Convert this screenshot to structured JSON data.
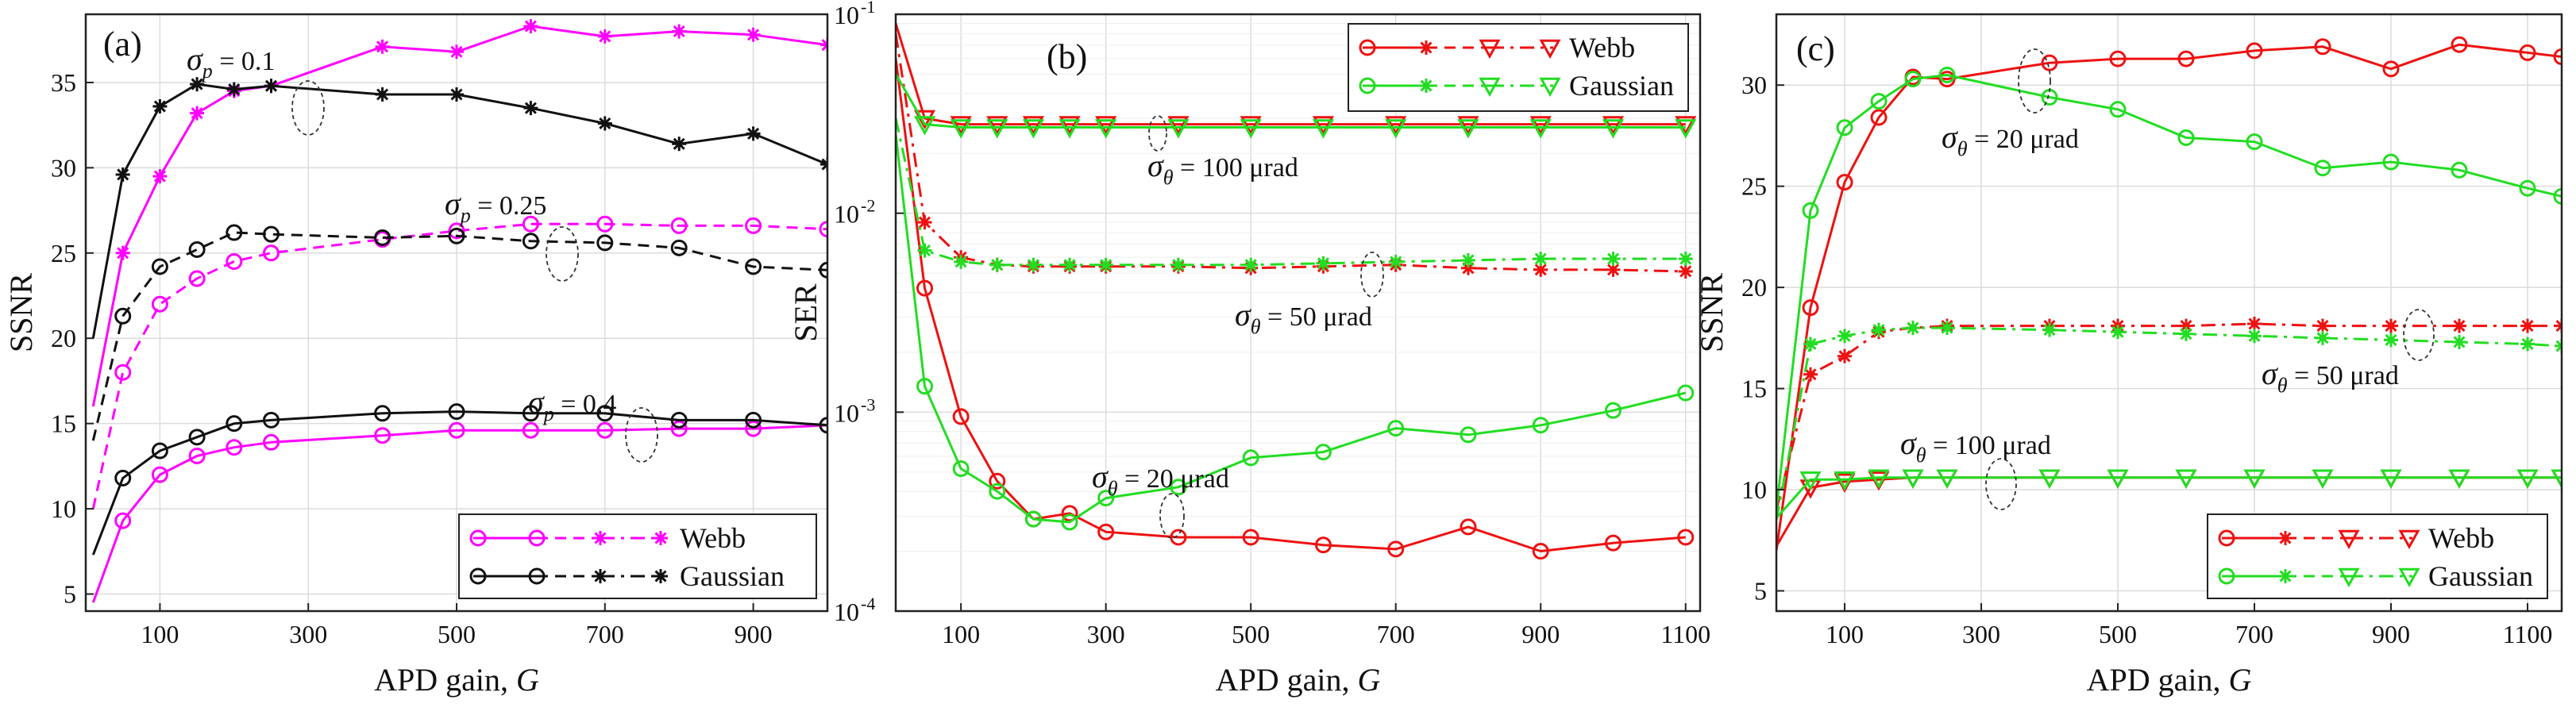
{
  "figure": {
    "caption_letters": [
      "(a)",
      "(b)",
      "(c)"
    ]
  },
  "chart_data": [
    {
      "type": "line",
      "panel": "(a)",
      "xlabel": "APD gain, ",
      "xlabel_var": "G",
      "ylabel": "SSNR",
      "xlim": [
        0,
        1000
      ],
      "ylim": [
        4,
        39
      ],
      "yscale": "linear",
      "xticks": [
        100,
        300,
        500,
        700,
        900
      ],
      "yticks": [
        5,
        10,
        15,
        20,
        25,
        30,
        35
      ],
      "ytick_labels": [
        "5",
        "10",
        "15",
        "20",
        "25",
        "30",
        "35"
      ],
      "grid": true,
      "legend": {
        "position": "bottom-right",
        "entries": [
          "Webb",
          "Gaussian"
        ]
      },
      "annotations": [
        {
          "sym": "σ",
          "sub": "p",
          "rest": " = 0.1"
        },
        {
          "sym": "σ",
          "sub": "p",
          "rest": " = 0.25"
        },
        {
          "sym": "σ",
          "sub": "p",
          "rest": " = 0.4"
        }
      ],
      "series": [
        {
          "name": "Webb σp = 0.1",
          "model": "Webb",
          "color": "#ff00ff",
          "dash": "solid",
          "marker": "star",
          "x": [
            10,
            50,
            100,
            150,
            200,
            250,
            400,
            500,
            600,
            700,
            800,
            900,
            1000
          ],
          "y": [
            16,
            25,
            29.5,
            33.2,
            34.5,
            34.8,
            37.1,
            36.8,
            38.3,
            37.7,
            38.0,
            37.8,
            37.2
          ]
        },
        {
          "name": "Webb σp = 0.25",
          "model": "Webb",
          "color": "#ff00ff",
          "dash": "dash",
          "marker": "circle",
          "x": [
            10,
            50,
            100,
            150,
            200,
            250,
            400,
            500,
            600,
            700,
            800,
            900,
            1000
          ],
          "y": [
            10,
            18,
            22,
            23.5,
            24.5,
            25,
            25.8,
            26.3,
            26.7,
            26.7,
            26.6,
            26.6,
            26.4
          ]
        },
        {
          "name": "Webb σp = 0.4",
          "model": "Webb",
          "color": "#ff00ff",
          "dash": "solid",
          "marker": "circle",
          "x": [
            10,
            50,
            100,
            150,
            200,
            250,
            400,
            500,
            600,
            700,
            800,
            900,
            1000
          ],
          "y": [
            4.5,
            9.3,
            12,
            13.1,
            13.6,
            13.9,
            14.3,
            14.6,
            14.6,
            14.6,
            14.7,
            14.7,
            14.9
          ]
        },
        {
          "name": "Gaussian σp = 0.1",
          "model": "Gaussian",
          "color": "#111111",
          "dash": "solid",
          "marker": "star",
          "x": [
            10,
            50,
            100,
            150,
            200,
            250,
            400,
            500,
            600,
            700,
            800,
            900,
            1000
          ],
          "y": [
            20,
            29.6,
            33.6,
            34.9,
            34.6,
            34.8,
            34.3,
            34.3,
            33.5,
            32.6,
            31.4,
            32.0,
            30.2
          ]
        },
        {
          "name": "Gaussian σp = 0.25",
          "model": "Gaussian",
          "color": "#111111",
          "dash": "dash",
          "marker": "circle",
          "x": [
            10,
            50,
            100,
            150,
            200,
            250,
            400,
            500,
            600,
            700,
            800,
            900,
            1000
          ],
          "y": [
            14,
            21.3,
            24.2,
            25.2,
            26.2,
            26.1,
            25.9,
            26.0,
            25.7,
            25.6,
            25.3,
            24.2,
            24.0
          ]
        },
        {
          "name": "Gaussian σp = 0.4",
          "model": "Gaussian",
          "color": "#111111",
          "dash": "solid",
          "marker": "circle",
          "x": [
            10,
            50,
            100,
            150,
            200,
            250,
            400,
            500,
            600,
            700,
            800,
            900,
            1000
          ],
          "y": [
            7.3,
            11.8,
            13.4,
            14.2,
            15.0,
            15.2,
            15.6,
            15.7,
            15.6,
            15.6,
            15.2,
            15.2,
            14.9
          ]
        }
      ]
    },
    {
      "type": "line",
      "panel": "(b)",
      "xlabel": "APD gain, ",
      "xlabel_var": "G",
      "ylabel": "SER",
      "xlim": [
        10,
        1120
      ],
      "ylim": [
        0.0001,
        0.1
      ],
      "yscale": "log",
      "xticks": [
        100,
        300,
        500,
        700,
        900,
        1100
      ],
      "yticks": [
        0.0001,
        0.001,
        0.01,
        0.1
      ],
      "ytick_labels": [
        "10",
        "10",
        "10",
        "10"
      ],
      "ytick_exps": [
        "-4",
        "-3",
        "-2",
        "-1"
      ],
      "grid": true,
      "legend": {
        "position": "top-right",
        "entries": [
          "Webb",
          "Gaussian"
        ]
      },
      "annotations": [
        {
          "sym": "σ",
          "sub": "θ",
          "rest": " = 100 μrad"
        },
        {
          "sym": "σ",
          "sub": "θ",
          "rest": " = 50 μrad"
        },
        {
          "sym": "σ",
          "sub": "θ",
          "rest": " = 20 μrad"
        }
      ],
      "series": [
        {
          "name": "Webb σθ = 100 μrad",
          "model": "Webb",
          "color": "#ee1111",
          "dash": "solid",
          "marker": "triangle",
          "x": [
            10,
            50,
            100,
            150,
            200,
            250,
            300,
            400,
            500,
            600,
            700,
            800,
            900,
            1000,
            1100
          ],
          "y": [
            0.09,
            0.03,
            0.028,
            0.028,
            0.028,
            0.028,
            0.028,
            0.028,
            0.028,
            0.028,
            0.028,
            0.028,
            0.028,
            0.028,
            0.028
          ]
        },
        {
          "name": "Webb σθ = 50 μrad",
          "model": "Webb",
          "color": "#ee1111",
          "dash": "dashdot",
          "marker": "star",
          "x": [
            10,
            50,
            100,
            150,
            200,
            250,
            300,
            400,
            500,
            600,
            700,
            800,
            900,
            1000,
            1100
          ],
          "y": [
            0.08,
            0.009,
            0.006,
            0.0055,
            0.0054,
            0.0054,
            0.0054,
            0.0054,
            0.0053,
            0.0054,
            0.0055,
            0.0053,
            0.0052,
            0.0052,
            0.0051
          ]
        },
        {
          "name": "Webb σθ = 20 μrad",
          "model": "Webb",
          "color": "#ee1111",
          "dash": "solid",
          "marker": "circle",
          "x": [
            10,
            50,
            100,
            150,
            200,
            250,
            300,
            400,
            500,
            600,
            700,
            800,
            900,
            1000,
            1100
          ],
          "y": [
            0.06,
            0.0042,
            0.00095,
            0.00045,
            0.00029,
            0.00031,
            0.00025,
            0.000235,
            0.000235,
            0.000215,
            0.000205,
            0.000265,
            0.0002,
            0.00022,
            0.000235
          ]
        },
        {
          "name": "Gaussian σθ = 100 μrad",
          "model": "Gaussian",
          "color": "#22dd22",
          "dash": "solid",
          "marker": "triangle",
          "x": [
            10,
            50,
            100,
            150,
            200,
            250,
            300,
            400,
            500,
            600,
            700,
            800,
            900,
            1000,
            1100
          ],
          "y": [
            0.05,
            0.028,
            0.027,
            0.027,
            0.027,
            0.027,
            0.027,
            0.027,
            0.027,
            0.027,
            0.027,
            0.027,
            0.027,
            0.027,
            0.027
          ]
        },
        {
          "name": "Gaussian σθ = 50 μrad",
          "model": "Gaussian",
          "color": "#22dd22",
          "dash": "dashdot",
          "marker": "star",
          "x": [
            10,
            50,
            100,
            150,
            200,
            250,
            300,
            400,
            500,
            600,
            700,
            800,
            900,
            1000,
            1100
          ],
          "y": [
            0.03,
            0.0065,
            0.0057,
            0.0055,
            0.0055,
            0.0055,
            0.0055,
            0.0055,
            0.0055,
            0.0056,
            0.0057,
            0.0058,
            0.0059,
            0.0059,
            0.0059
          ]
        },
        {
          "name": "Gaussian σθ = 20 μrad",
          "model": "Gaussian",
          "color": "#22dd22",
          "dash": "solid",
          "marker": "circle",
          "x": [
            10,
            50,
            100,
            150,
            200,
            250,
            300,
            400,
            500,
            600,
            700,
            800,
            900,
            1000,
            1100
          ],
          "y": [
            0.025,
            0.00135,
            0.00052,
            0.0004,
            0.00029,
            0.00028,
            0.00037,
            0.00042,
            0.00059,
            0.00063,
            0.00083,
            0.00077,
            0.00086,
            0.00102,
            0.00125
          ]
        }
      ]
    },
    {
      "type": "line",
      "panel": "(c)",
      "xlabel": "APD gain, ",
      "xlabel_var": "G",
      "ylabel": "SSNR",
      "xlim": [
        0,
        1150
      ],
      "ylim": [
        4,
        33.5
      ],
      "yscale": "linear",
      "xticks": [
        100,
        300,
        500,
        700,
        900,
        1100
      ],
      "yticks": [
        5,
        10,
        15,
        20,
        25,
        30
      ],
      "ytick_labels": [
        "5",
        "10",
        "15",
        "20",
        "25",
        "30"
      ],
      "grid": true,
      "legend": {
        "position": "bottom-right",
        "entries": [
          "Webb",
          "Gaussian"
        ]
      },
      "annotations": [
        {
          "sym": "σ",
          "sub": "θ",
          "rest": " = 20 μrad"
        },
        {
          "sym": "σ",
          "sub": "θ",
          "rest": " = 50 μrad"
        },
        {
          "sym": "σ",
          "sub": "θ",
          "rest": " = 100 μrad"
        }
      ],
      "series": [
        {
          "name": "Webb σθ = 20 μrad",
          "model": "Webb",
          "color": "#ee1111",
          "dash": "solid",
          "marker": "circle",
          "x": [
            0,
            50,
            100,
            150,
            200,
            250,
            400,
            500,
            600,
            700,
            800,
            900,
            1000,
            1100,
            1150
          ],
          "y": [
            7,
            19,
            25.2,
            28.4,
            30.4,
            30.3,
            31.1,
            31.3,
            31.3,
            31.7,
            31.9,
            30.8,
            32.0,
            31.6,
            31.4
          ]
        },
        {
          "name": "Webb σθ = 50 μrad",
          "model": "Webb",
          "color": "#ee1111",
          "dash": "dashdot",
          "marker": "star",
          "x": [
            0,
            50,
            100,
            150,
            200,
            250,
            400,
            500,
            600,
            700,
            800,
            900,
            1000,
            1100,
            1150
          ],
          "y": [
            9,
            15.7,
            16.6,
            17.8,
            18.0,
            18.1,
            18.1,
            18.1,
            18.1,
            18.2,
            18.1,
            18.1,
            18.1,
            18.1,
            18.1
          ]
        },
        {
          "name": "Webb σθ = 100 μrad",
          "model": "Webb",
          "color": "#ee1111",
          "dash": "solid",
          "marker": "triangle",
          "x": [
            0,
            50,
            100,
            150,
            200,
            250,
            400,
            500,
            600,
            700,
            800,
            900,
            1000,
            1100,
            1150
          ],
          "y": [
            7.2,
            10.1,
            10.4,
            10.5,
            10.6,
            10.6,
            10.6,
            10.6,
            10.6,
            10.6,
            10.6,
            10.6,
            10.6,
            10.6,
            10.6
          ]
        },
        {
          "name": "Gaussian σθ = 20 μrad",
          "model": "Gaussian",
          "color": "#22dd22",
          "dash": "solid",
          "marker": "circle",
          "x": [
            0,
            50,
            100,
            150,
            200,
            250,
            400,
            500,
            600,
            700,
            800,
            900,
            1000,
            1100,
            1150
          ],
          "y": [
            9,
            23.8,
            27.9,
            29.2,
            30.3,
            30.5,
            29.4,
            28.8,
            27.4,
            27.2,
            25.9,
            26.2,
            25.8,
            24.9,
            24.5
          ]
        },
        {
          "name": "Gaussian σθ = 50 μrad",
          "model": "Gaussian",
          "color": "#22dd22",
          "dash": "dashdot",
          "marker": "star",
          "x": [
            0,
            50,
            100,
            150,
            200,
            250,
            400,
            500,
            600,
            700,
            800,
            900,
            1000,
            1100,
            1150
          ],
          "y": [
            8.5,
            17.2,
            17.6,
            17.9,
            18.0,
            18.0,
            17.9,
            17.8,
            17.7,
            17.6,
            17.5,
            17.4,
            17.3,
            17.2,
            17.1
          ]
        },
        {
          "name": "Gaussian σθ = 100 μrad",
          "model": "Gaussian",
          "color": "#22dd22",
          "dash": "solid",
          "marker": "triangle",
          "x": [
            0,
            50,
            100,
            150,
            200,
            250,
            400,
            500,
            600,
            700,
            800,
            900,
            1000,
            1100,
            1150
          ],
          "y": [
            8.6,
            10.5,
            10.5,
            10.6,
            10.6,
            10.6,
            10.6,
            10.6,
            10.6,
            10.6,
            10.6,
            10.6,
            10.6,
            10.6,
            10.6
          ]
        }
      ]
    }
  ]
}
